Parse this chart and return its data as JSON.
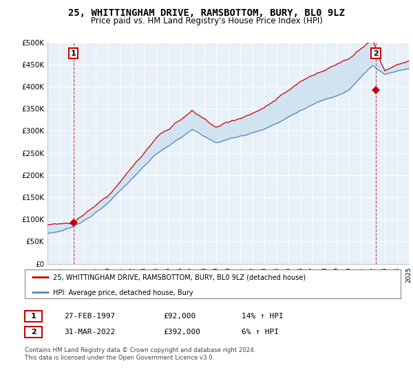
{
  "title": "25, WHITTINGHAM DRIVE, RAMSBOTTOM, BURY, BL0 9LZ",
  "subtitle": "Price paid vs. HM Land Registry's House Price Index (HPI)",
  "ylim": [
    0,
    500000
  ],
  "yticks": [
    0,
    50000,
    100000,
    150000,
    200000,
    250000,
    300000,
    350000,
    400000,
    450000,
    500000
  ],
  "ytick_labels": [
    "£0",
    "£50K",
    "£100K",
    "£150K",
    "£200K",
    "£250K",
    "£300K",
    "£350K",
    "£400K",
    "£450K",
    "£500K"
  ],
  "sale1_date": 1997.15,
  "sale1_price": 92000,
  "sale1_label": "1",
  "sale2_date": 2022.25,
  "sale2_price": 392000,
  "sale2_label": "2",
  "legend_red_label": "25, WHITTINGHAM DRIVE, RAMSBOTTOM, BURY, BL0 9LZ (detached house)",
  "legend_blue_label": "HPI: Average price, detached house, Bury",
  "table_row1": [
    "1",
    "27-FEB-1997",
    "£92,000",
    "14% ↑ HPI"
  ],
  "table_row2": [
    "2",
    "31-MAR-2022",
    "£392,000",
    "6% ↑ HPI"
  ],
  "footnote": "Contains HM Land Registry data © Crown copyright and database right 2024.\nThis data is licensed under the Open Government Licence v3.0.",
  "red_color": "#cc0000",
  "blue_color": "#5588bb",
  "fill_color": "#cce0f0",
  "background_color": "#ffffff",
  "chart_bg": "#e8f0f8",
  "grid_color": "#ffffff"
}
